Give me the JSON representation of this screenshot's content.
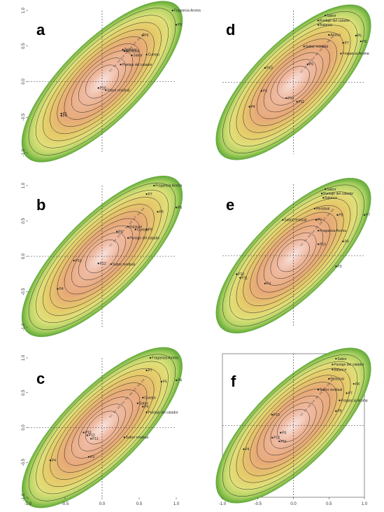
{
  "chart_data": [
    {
      "type": "scatter",
      "panel": "a",
      "xlim": [
        -1.0,
        1.0
      ],
      "ylim": [
        -1.0,
        1.0
      ],
      "yticks": [
        "1.0",
        "0.5",
        "0.0",
        "-0.5",
        "-1.0"
      ],
      "xticks": [],
      "contour_levels": [
        "0.1",
        "0.2",
        "0.3",
        "0.4",
        "0.5",
        "0.6",
        "0.7",
        "0.8",
        "0.9"
      ],
      "points": [
        {
          "label": "Fragancia Aroma",
          "x": 0.95,
          "y": 1.0
        },
        {
          "label": "P5",
          "x": 1.0,
          "y": 0.8
        },
        {
          "label": "P9",
          "x": 0.55,
          "y": 0.65
        },
        {
          "label": "Balance",
          "x": 0.28,
          "y": 0.45
        },
        {
          "label": "Residual",
          "x": 0.3,
          "y": 0.43
        },
        {
          "label": "Cuerpo",
          "x": 0.6,
          "y": 0.38
        },
        {
          "label": "Sabor",
          "x": 0.4,
          "y": 0.37
        },
        {
          "label": "Puntaje del catador",
          "x": 0.25,
          "y": 0.24
        },
        {
          "label": "P10",
          "x": -0.05,
          "y": -0.09
        },
        {
          "label": "Sabor residual",
          "x": 0.05,
          "y": -0.12
        },
        {
          "label": "P1",
          "x": -0.55,
          "y": -0.45
        },
        {
          "label": "P4",
          "x": -0.55,
          "y": -0.48
        }
      ]
    },
    {
      "type": "scatter",
      "panel": "b",
      "xlim": [
        -1.0,
        1.0
      ],
      "ylim": [
        -1.0,
        1.0
      ],
      "yticks": [
        "1.0",
        "0.5",
        "0.0",
        "-0.5",
        "-1.0"
      ],
      "xticks": [],
      "contour_levels": [
        "0.1",
        "0.2",
        "0.3",
        "0.4",
        "0.5",
        "0.6",
        "0.7",
        "0.8",
        "0.9"
      ],
      "points": [
        {
          "label": "Fragancia Aroma",
          "x": 0.7,
          "y": 1.0
        },
        {
          "label": "P7",
          "x": 0.6,
          "y": 0.88
        },
        {
          "label": "P6",
          "x": 1.0,
          "y": 0.69
        },
        {
          "label": "P6",
          "x": 0.75,
          "y": 0.63
        },
        {
          "label": "Balance",
          "x": 0.35,
          "y": 0.42
        },
        {
          "label": "Cuerpo",
          "x": 0.45,
          "y": 0.38
        },
        {
          "label": "P9",
          "x": 0.6,
          "y": 0.38
        },
        {
          "label": "P3",
          "x": 0.2,
          "y": 0.35
        },
        {
          "label": "Puntaje del catador",
          "x": 0.35,
          "y": 0.26
        },
        {
          "label": "P10",
          "x": -0.38,
          "y": -0.06
        },
        {
          "label": "P12",
          "x": -0.05,
          "y": -0.1
        },
        {
          "label": "Sabor residual",
          "x": 0.12,
          "y": -0.11
        },
        {
          "label": "P4",
          "x": -0.6,
          "y": -0.46
        }
      ]
    },
    {
      "type": "scatter",
      "panel": "c",
      "xlim": [
        -1.0,
        1.0
      ],
      "ylim": [
        -1.0,
        1.0
      ],
      "yticks": [
        "1.0",
        "0.5",
        "0.0",
        "-0.5",
        "-1.0"
      ],
      "xticks": [
        "-1.0",
        "-0.5",
        "0.0",
        "0.5",
        "1.0"
      ],
      "contour_levels": [
        "0.1",
        "0.2",
        "0.3",
        "0.4",
        "0.5",
        "0.6",
        "0.7",
        "0.8",
        "0.9"
      ],
      "points": [
        {
          "label": "Fragancia Aroma",
          "x": 0.65,
          "y": 1.0
        },
        {
          "label": "P7",
          "x": 0.6,
          "y": 0.82
        },
        {
          "label": "P6",
          "x": 1.0,
          "y": 0.68
        },
        {
          "label": "P5",
          "x": 0.8,
          "y": 0.66
        },
        {
          "label": "Cuerpo",
          "x": 0.55,
          "y": 0.43
        },
        {
          "label": "Sabor",
          "x": 0.48,
          "y": 0.35
        },
        {
          "label": "P9",
          "x": 0.55,
          "y": 0.3
        },
        {
          "label": "Puntaje del catador",
          "x": 0.6,
          "y": 0.22
        },
        {
          "label": "P10",
          "x": -0.25,
          "y": -0.07
        },
        {
          "label": "P12",
          "x": -0.2,
          "y": -0.11
        },
        {
          "label": "P11",
          "x": -0.15,
          "y": -0.16
        },
        {
          "label": "Sabor residual",
          "x": 0.3,
          "y": -0.14
        },
        {
          "label": "P3",
          "x": -0.18,
          "y": -0.42
        },
        {
          "label": "P4",
          "x": -0.7,
          "y": -0.47
        }
      ]
    },
    {
      "type": "scatter",
      "panel": "d",
      "xlim": [
        -1.0,
        1.0
      ],
      "ylim": [
        -1.0,
        1.0
      ],
      "yticks": [],
      "xticks": [],
      "contour_levels": [
        "0.1",
        "0.2",
        "0.3",
        "0.4",
        "0.5",
        "0.6",
        "0.7",
        "0.8",
        "0.9"
      ],
      "points": [
        {
          "label": "Sabor",
          "x": 0.45,
          "y": 0.93
        },
        {
          "label": "Puntaje del catador",
          "x": 0.35,
          "y": 0.86
        },
        {
          "label": "Balance",
          "x": 0.35,
          "y": 0.8
        },
        {
          "label": "P8",
          "x": 0.95,
          "y": 0.57
        },
        {
          "label": "Aroma",
          "x": 0.5,
          "y": 0.66
        },
        {
          "label": "P5",
          "x": 0.88,
          "y": 0.65
        },
        {
          "label": "Sabor residual",
          "x": 0.15,
          "y": 0.5
        },
        {
          "label": "P7",
          "x": 0.7,
          "y": 0.55
        },
        {
          "label": "Fragancia Aroma",
          "x": 0.67,
          "y": 0.4
        },
        {
          "label": "P10",
          "x": -0.4,
          "y": 0.2
        },
        {
          "label": "P9",
          "x": 0.2,
          "y": 0.25
        },
        {
          "label": "P3",
          "x": -0.45,
          "y": -0.12
        },
        {
          "label": "P12",
          "x": -0.1,
          "y": -0.22
        },
        {
          "label": "P11",
          "x": 0.05,
          "y": -0.27
        },
        {
          "label": "P4",
          "x": -0.62,
          "y": -0.34
        }
      ]
    },
    {
      "type": "scatter",
      "panel": "e",
      "xlim": [
        -1.0,
        1.0
      ],
      "ylim": [
        -1.0,
        1.0
      ],
      "yticks": [],
      "xticks": [],
      "contour_levels": [
        "0.1",
        "0.2",
        "0.3",
        "0.4",
        "0.5",
        "0.6",
        "0.7",
        "0.8",
        "0.9"
      ],
      "points": [
        {
          "label": "Sabor",
          "x": 0.45,
          "y": 0.93
        },
        {
          "label": "Puntaje del catador",
          "x": 0.4,
          "y": 0.87
        },
        {
          "label": "Balance",
          "x": 0.42,
          "y": 0.81
        },
        {
          "label": "P7",
          "x": 1.0,
          "y": 0.57
        },
        {
          "label": "Residual",
          "x": 0.3,
          "y": 0.66
        },
        {
          "label": "P8",
          "x": 0.62,
          "y": 0.57
        },
        {
          "label": "P5",
          "x": 0.32,
          "y": 0.5
        },
        {
          "label": "Sabor residual",
          "x": -0.15,
          "y": 0.5
        },
        {
          "label": "Fragancia Aroma",
          "x": 0.35,
          "y": 0.35
        },
        {
          "label": "P9",
          "x": 0.7,
          "y": 0.2
        },
        {
          "label": "P10",
          "x": 0.35,
          "y": 0.16
        },
        {
          "label": "P3",
          "x": 0.6,
          "y": -0.15
        },
        {
          "label": "P12",
          "x": -0.8,
          "y": -0.26
        },
        {
          "label": "P11",
          "x": -0.75,
          "y": -0.31
        },
        {
          "label": "P4",
          "x": -0.4,
          "y": -0.39
        }
      ]
    },
    {
      "type": "scatter",
      "panel": "f",
      "xlim": [
        -1.0,
        1.0
      ],
      "ylim": [
        -1.0,
        1.0
      ],
      "yticks": [],
      "xticks": [
        "-1.0",
        "-0.5",
        "0.0",
        "0.5",
        "1.0"
      ],
      "contour_levels": [
        "0.1",
        "0.2",
        "0.3",
        "0.4",
        "0.5",
        "0.6",
        "0.7",
        "0.8",
        "0.9"
      ],
      "points": [
        {
          "label": "Sabor",
          "x": 0.6,
          "y": 0.93
        },
        {
          "label": "Puntaje del catador",
          "x": 0.55,
          "y": 0.85
        },
        {
          "label": "Balance",
          "x": 0.55,
          "y": 0.78
        },
        {
          "label": "Residual",
          "x": 0.5,
          "y": 0.65
        },
        {
          "label": "Sabor residual",
          "x": 0.35,
          "y": 0.5
        },
        {
          "label": "P8",
          "x": 0.85,
          "y": 0.58
        },
        {
          "label": "P7",
          "x": 0.75,
          "y": 0.45
        },
        {
          "label": "Fragancia Aroma",
          "x": 0.65,
          "y": 0.35
        },
        {
          "label": "P10",
          "x": -0.3,
          "y": 0.15
        },
        {
          "label": "P9",
          "x": 0.6,
          "y": 0.2
        },
        {
          "label": "P3",
          "x": -0.18,
          "y": -0.1
        },
        {
          "label": "P12",
          "x": -0.3,
          "y": -0.17
        },
        {
          "label": "P11",
          "x": -0.2,
          "y": -0.22
        },
        {
          "label": "P4",
          "x": -0.7,
          "y": -0.33
        }
      ]
    }
  ]
}
